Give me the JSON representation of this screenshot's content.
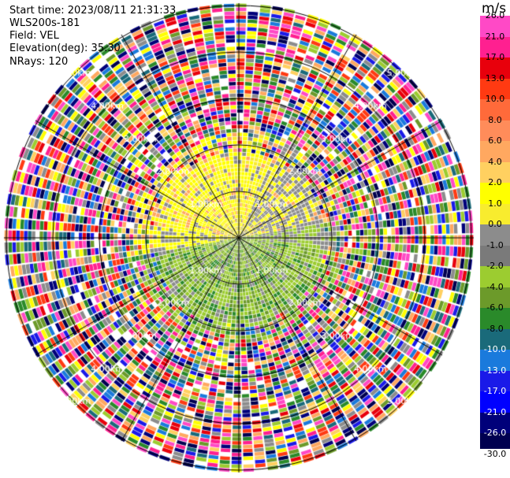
{
  "header": {
    "start_time": "Start time: 2023/08/11 21:31:33",
    "instrument": "WLS200s-181",
    "field": "Field: VEL",
    "elevation": "Elevation(deg): 35.30",
    "nrays": "NRays: 120"
  },
  "range_rings": {
    "ring_labels": [
      "1.00km",
      "2.00km",
      "3.00km",
      "4.00km",
      "5.00km"
    ]
  },
  "colorbar": {
    "unit": "m/s",
    "ticks": [
      "26.0",
      "21.0",
      "17.0",
      "13.0",
      "10.0",
      "8.0",
      "6.0",
      "4.0",
      "2.0",
      "1.0",
      "0.0",
      "-1.0",
      "-2.0",
      "-4.0",
      "-6.0",
      "-8.0",
      "-10.0",
      "-13.0",
      "-17.0",
      "-21.0",
      "-26.0",
      "-30.0"
    ],
    "colors": [
      "#ff49c6",
      "#ff2090",
      "#e8000c",
      "#ff3a12",
      "#ff6a3a",
      "#ff8c5a",
      "#ffa860",
      "#ffd060",
      "#ffff00",
      "#f8ec2e",
      "#8c8c8c",
      "#7a7a7a",
      "#9ccc30",
      "#6c9a2a",
      "#2a8a2a",
      "#1a6a7a",
      "#1a7adc",
      "#1a1ae8",
      "#0000ff",
      "#00007a",
      "#000050"
    ]
  }
}
